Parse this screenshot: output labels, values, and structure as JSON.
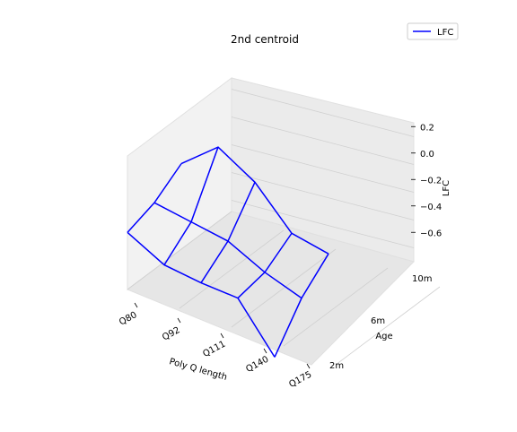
{
  "chart_data": {
    "type": "line",
    "title": "2nd centroid",
    "xlabel": "Poly Q length",
    "ylabel": "Age",
    "zlabel": "LFC",
    "x_categories": [
      "Q80",
      "Q92",
      "Q111",
      "Q140",
      "Q175"
    ],
    "y_categories": [
      "2m",
      "6m",
      "10m"
    ],
    "zlim": [
      -0.7,
      0.3
    ],
    "z_ticks": [
      0.2,
      0.0,
      -0.2,
      -0.4,
      -0.6
    ],
    "z_tick_labels": [
      "0.2",
      "0.0",
      "−0.2",
      "−0.4",
      "−0.6"
    ],
    "legend": {
      "label": "LFC",
      "location": "upper right"
    },
    "grid": true,
    "series": [
      {
        "name": "LFC",
        "color": "#0000ff",
        "z": [
          [
            -0.17,
            -0.14,
            -0.04
          ],
          [
            -0.3,
            -0.17,
            0.2
          ],
          [
            -0.32,
            -0.2,
            0.05
          ],
          [
            -0.32,
            -0.32,
            -0.22
          ],
          [
            -0.65,
            -0.4,
            -0.26
          ]
        ]
      }
    ]
  }
}
